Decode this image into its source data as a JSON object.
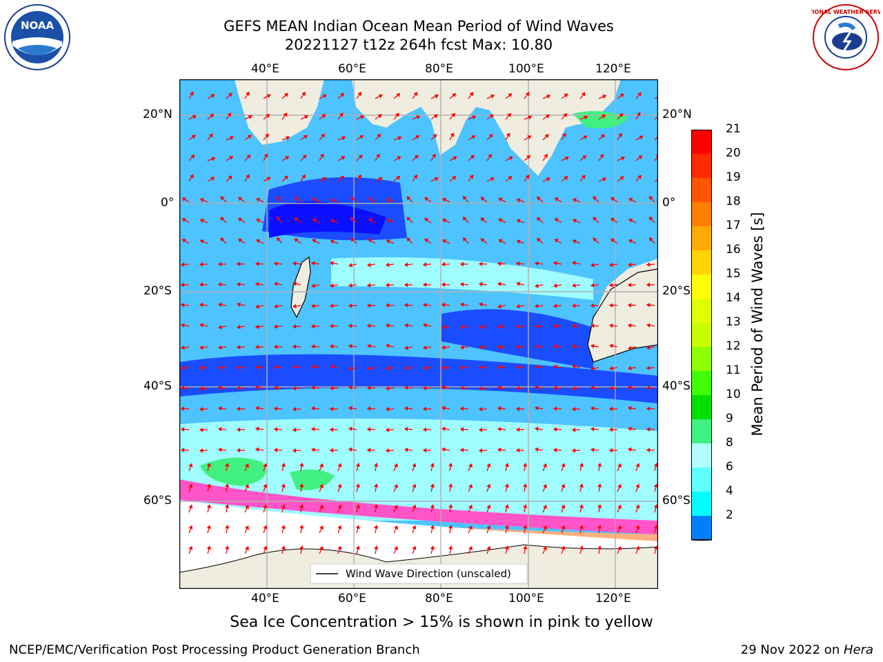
{
  "title": {
    "line1": "GEFS MEAN Indian Ocean Mean Period of Wind Waves",
    "line2": "20221127 t12z 264h fcst   Max: 10.80"
  },
  "map": {
    "lon_ticks": [
      "40°E",
      "60°E",
      "80°E",
      "100°E",
      "120°E"
    ],
    "lat_ticks": [
      "20°N",
      "0°",
      "20°S",
      "40°S",
      "60°S"
    ],
    "legend_label": "Wind Wave Direction (unscaled)"
  },
  "colorbar": {
    "label": "Mean Period of Wind Waves [s]",
    "ticks": [
      "21",
      "20",
      "19",
      "18",
      "17",
      "16",
      "15",
      "14",
      "13",
      "12",
      "11",
      "10",
      "9",
      "8",
      "6",
      "4",
      "2"
    ],
    "colors": [
      "#ff0000",
      "#ff2a00",
      "#ff5500",
      "#ff7f00",
      "#ffaa00",
      "#ffd400",
      "#ffff00",
      "#e0ff00",
      "#c8ff00",
      "#90ff00",
      "#40ff00",
      "#00e000",
      "#40f080",
      "#b0ffff",
      "#60ffff",
      "#00ffff",
      "#0080ff"
    ],
    "extend_color": "#0000ff"
  },
  "caption": "Sea Ice Concentration > 15% is shown in pink to yellow",
  "footer": {
    "left": "NCEP/EMC/Verification Post Processing Product Generation Branch",
    "right_prefix": "29 Nov 2022 on ",
    "right_italic": "Hera"
  },
  "logos": {
    "noaa": "NOAA",
    "nws": "NATIONAL WEATHER SERVICE"
  }
}
